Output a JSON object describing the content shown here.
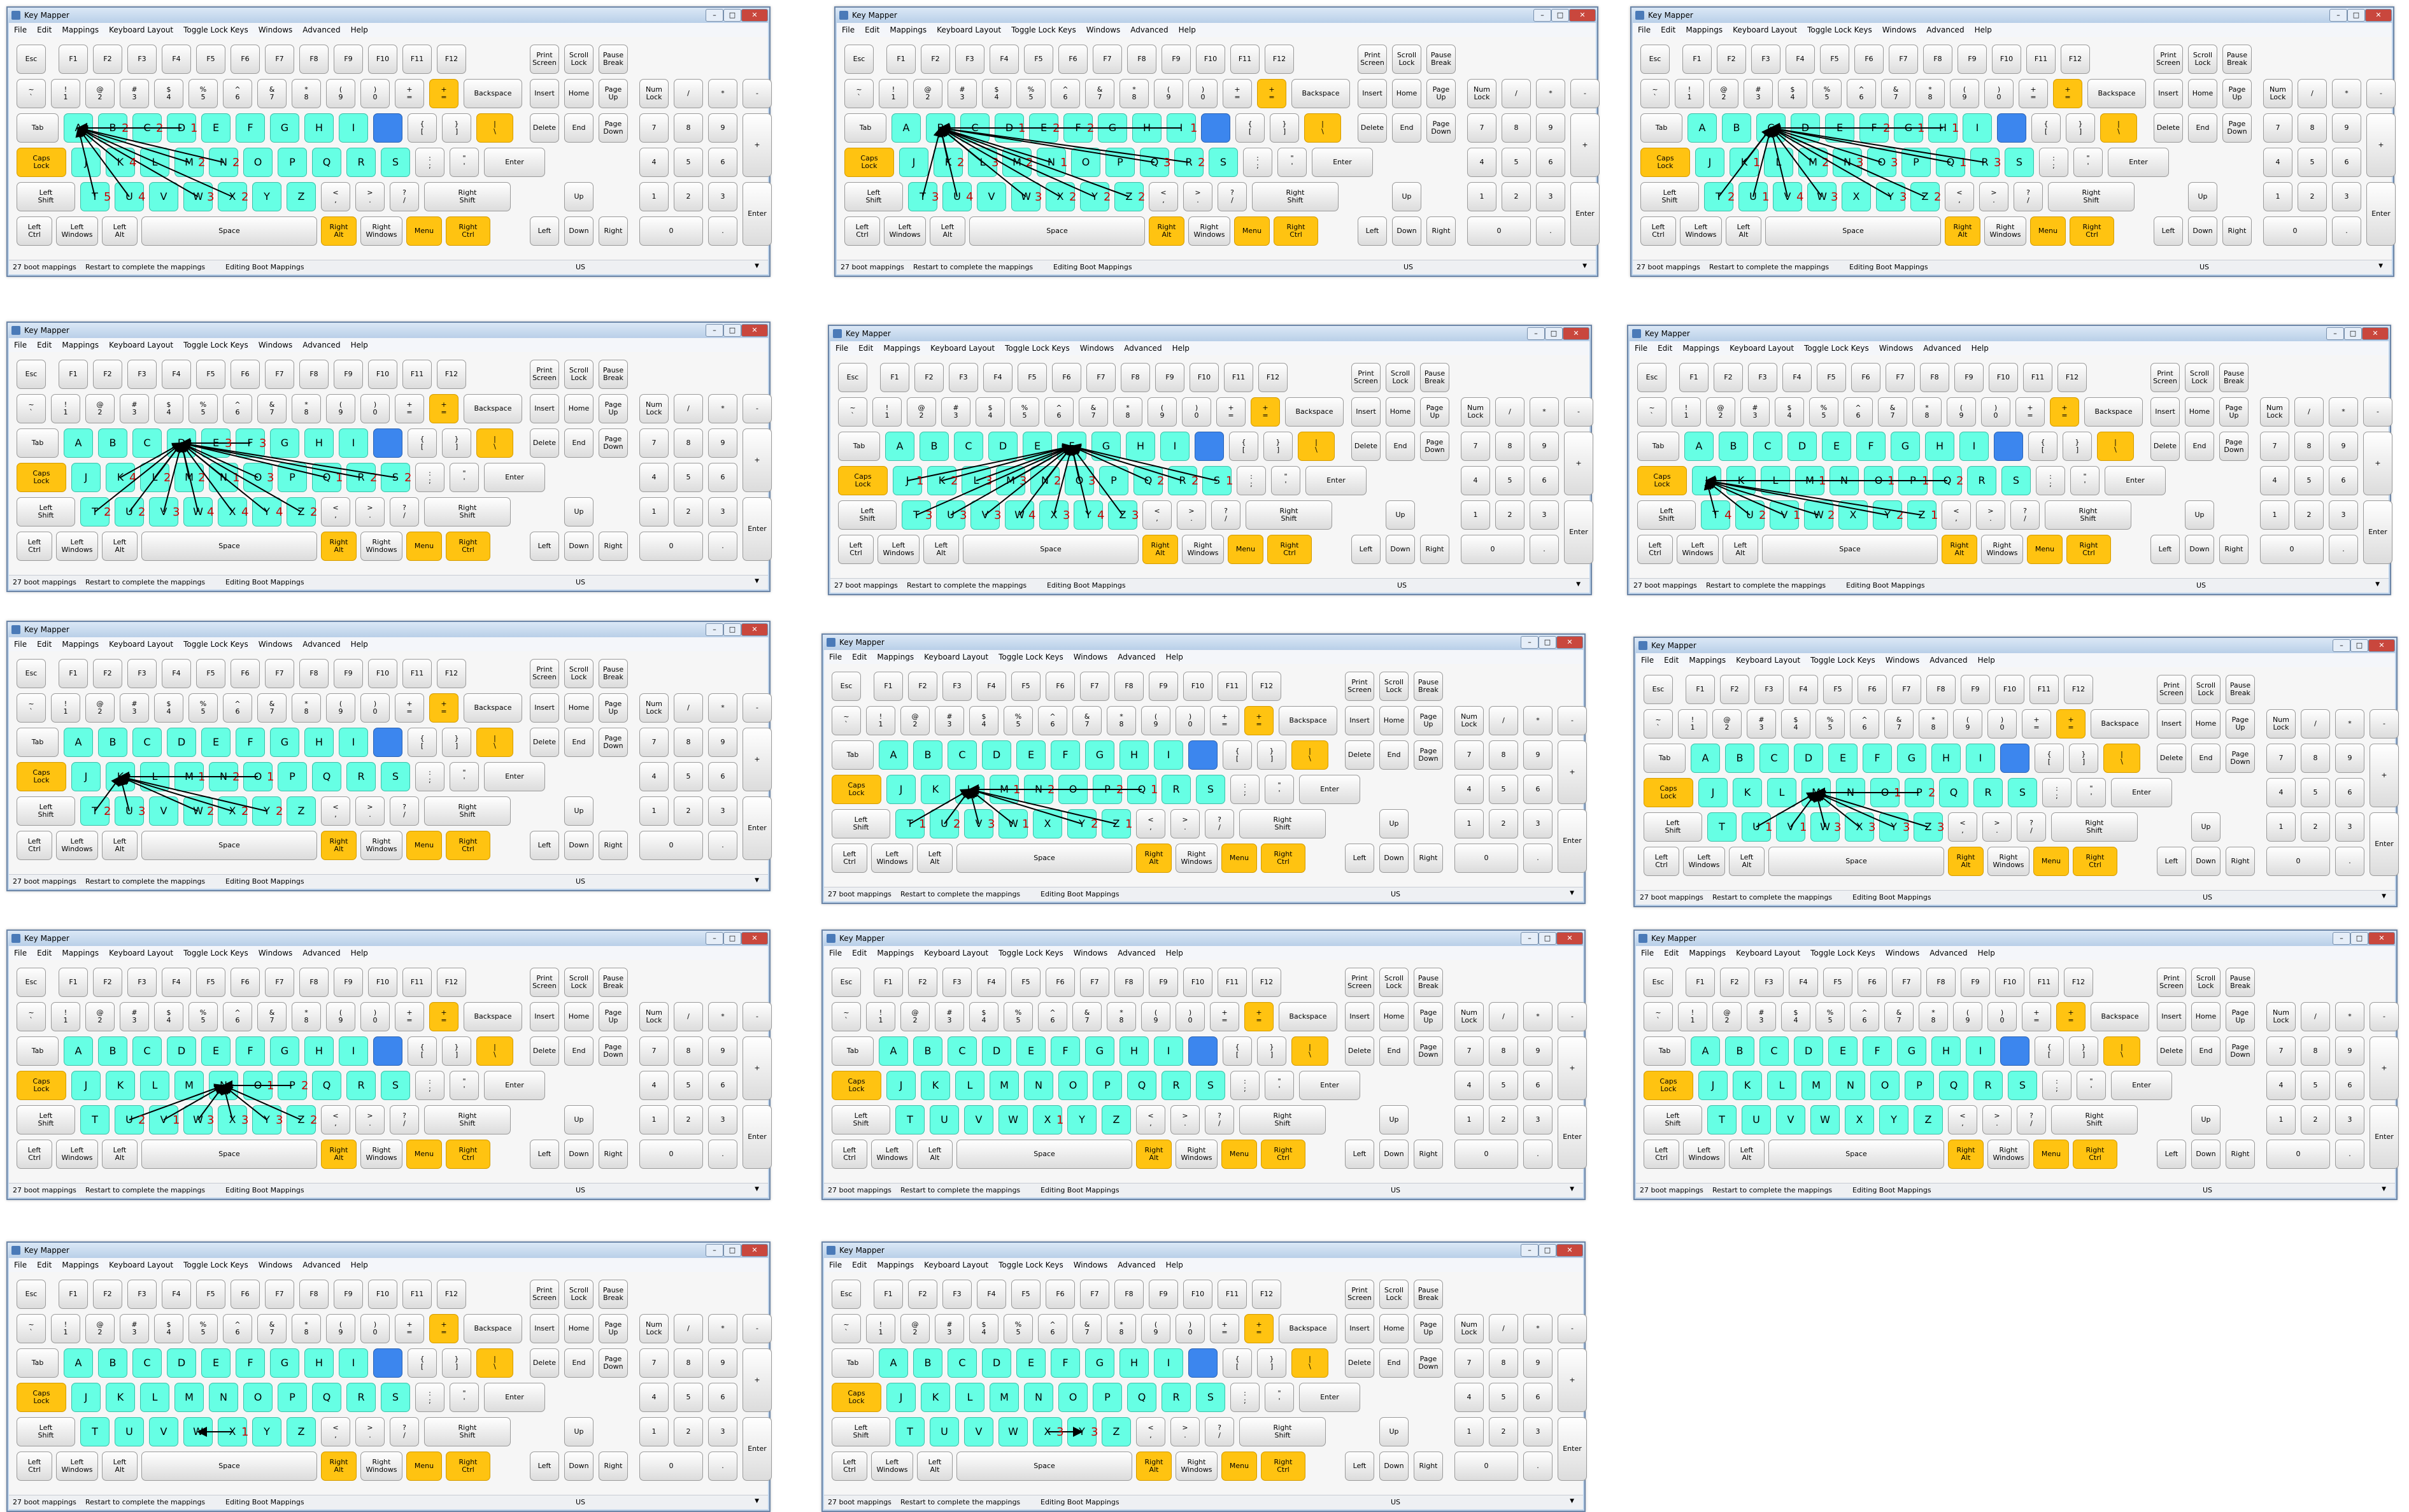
{
  "window": {
    "title": "Key Mapper",
    "controls": {
      "minimize": "–",
      "maximize": "□",
      "close": "✕"
    }
  },
  "menu": [
    "File",
    "Edit",
    "Mappings",
    "Keyboard Layout",
    "Toggle Lock Keys",
    "Windows",
    "Advanced",
    "Help"
  ],
  "status": {
    "count": "27 boot mappings",
    "restart": "Restart to complete the mappings",
    "mode": "Editing Boot Mappings",
    "layout": "US",
    "dropdown_icon": "chevron-down-icon"
  },
  "keys": {
    "esc": "Esc",
    "f1": "F1",
    "f2": "F2",
    "f3": "F3",
    "f4": "F4",
    "f5": "F5",
    "f6": "F6",
    "f7": "F7",
    "f8": "F8",
    "f9": "F9",
    "f10": "F10",
    "f11": "F11",
    "f12": "F12",
    "tilde": "~\n`",
    "d1": "!\n1",
    "d2": "@\n2",
    "d3": "#\n3",
    "d4": "$\n4",
    "d5": "%\n5",
    "d6": "^\n6",
    "d7": "&\n7",
    "d8": "*\n8",
    "d9": "(\n9",
    "d0": ")\n0",
    "minus": "+\n=",
    "equal": "+\n=",
    "backspace": "Backspace",
    "tab": "Tab",
    "lbracket": "{\n[",
    "rbracket": "}\n]",
    "backslash": "|\n\\",
    "caps": "Caps\nLock",
    "semicolon": ":\n;",
    "quote": "\"\n'",
    "enter": "Enter",
    "lshift": "Left\nShift",
    "comma": "<\n,",
    "period": ">\n.",
    "slash": "?\n/",
    "rshift": "Right\nShift",
    "lctrl": "Left\nCtrl",
    "lwin": "Left\nWindows",
    "lalt": "Left\nAlt",
    "space": "Space",
    "ralt": "Right\nAlt",
    "rwin": "Right\nWindows",
    "menu": "Menu",
    "rctrl": "Right\nCtrl",
    "prtsc": "Print\nScreen",
    "scroll": "Scroll\nLock",
    "pause": "Pause\nBreak",
    "insert": "Insert",
    "home": "Home",
    "pgup": "Page\nUp",
    "delete": "Delete",
    "end": "End",
    "pgdn": "Page\nDown",
    "up": "Up",
    "left": "Left",
    "down": "Down",
    "right": "Right",
    "numlock": "Num\nLock",
    "npdiv": "/",
    "npmul": "*",
    "npminus": "-",
    "npplus": "+",
    "npenter": "Enter",
    "np7": "7",
    "np8": "8",
    "np9": "9",
    "np4": "4",
    "np5": "5",
    "np6": "6",
    "np1": "1",
    "np2": "2",
    "np3": "3",
    "np0": "0",
    "npdot": "."
  },
  "letters": [
    "A",
    "B",
    "C",
    "D",
    "E",
    "F",
    "G",
    "H",
    "I",
    "J",
    "K",
    "L",
    "M",
    "N",
    "O",
    "P",
    "Q",
    "R",
    "S",
    "T",
    "U",
    "V",
    "W",
    "X",
    "Y",
    "Z"
  ],
  "screens": [
    {
      "source": "A",
      "labels": {
        "B": "2",
        "C": "2",
        "D": "1",
        "M": "2",
        "T": "5",
        "U": "4",
        "W": "3",
        "X": "2",
        "K": "4",
        "N": "2"
      }
    },
    {
      "source": "B",
      "labels": {
        "E": "2",
        "D": "1",
        "F": "2",
        "I": "1",
        "K": "2",
        "L": "3",
        "M": "2",
        "N": "1",
        "T": "3",
        "U": "4",
        "W": "3",
        "X": "2",
        "Y": "2",
        "Z": "2",
        "R": "2",
        "Q": "3"
      }
    },
    {
      "source": "C",
      "labels": {
        "F": "2",
        "G": "1",
        "H": "1",
        "K": "1",
        "M": "2",
        "N": "3",
        "O": "3",
        "Q": "1",
        "R": "3",
        "T": "2",
        "U": "1",
        "V": "4",
        "W": "3",
        "Y": "3",
        "Z": "2"
      }
    },
    {
      "source": "D",
      "labels": {
        "F": "3",
        "E": "3",
        "K": "4",
        "L": "2",
        "M": "2",
        "N": "1",
        "O": "3",
        "Q": "1",
        "R": "2",
        "T": "2",
        "U": "2",
        "V": "3",
        "W": "4",
        "X": "4",
        "Y": "4",
        "Z": "2",
        "S": "2"
      }
    },
    {
      "source": "F",
      "labels": {
        "K": "2",
        "J": "1",
        "L": "3",
        "M": "3",
        "N": "2",
        "O": "3",
        "Q": "2",
        "R": "2",
        "T": "3",
        "U": "3",
        "V": "3",
        "W": "4",
        "X": "3",
        "Y": "4",
        "Z": "3",
        "S": "1"
      }
    },
    {
      "source": "J",
      "labels": {
        "M": "1",
        "O": "1",
        "P": "1",
        "Q": "2",
        "T": "4",
        "U": "2",
        "V": "1",
        "W": "2",
        "Y": "2",
        "Z": "1"
      }
    },
    {
      "source": "K",
      "labels": {
        "M": "1",
        "N": "2",
        "O": "1",
        "T": "2",
        "U": "3",
        "W": "2",
        "X": "2",
        "Y": "2"
      }
    },
    {
      "source": "L",
      "labels": {
        "M": "1",
        "N": "2",
        "P": "2",
        "Q": "1",
        "T": "1",
        "U": "2",
        "V": "3",
        "W": "1",
        "Y": "2",
        "Z": "1"
      }
    },
    {
      "source": "M",
      "labels": {
        "O": "1",
        "P": "2",
        "U": "1",
        "V": "1",
        "W": "3",
        "X": "3",
        "Y": "3",
        "Z": "3"
      }
    },
    {
      "source": "N",
      "labels": {
        "O": "1",
        "P": "2",
        "U": "2",
        "V": "1",
        "W": "3",
        "X": "3",
        "Y": "3",
        "Z": "2"
      }
    },
    {
      "source": "X",
      "labels": {
        "X": "1"
      }
    },
    {
      "source": "X",
      "labels": {}
    },
    {
      "source": "W",
      "labels": {
        "X": "1"
      }
    },
    {
      "source": "Y",
      "labels": {
        "X": "3",
        "Y": "3"
      }
    }
  ]
}
